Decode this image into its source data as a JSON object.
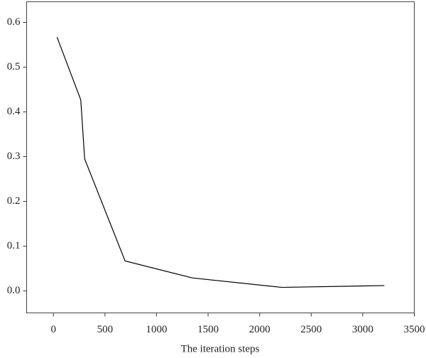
{
  "chart_data": {
    "type": "line",
    "x_label": "The iteration steps",
    "x": [
      35,
      265,
      303,
      695,
      1350,
      2215,
      3210
    ],
    "values": [
      0.567,
      0.427,
      0.295,
      0.067,
      0.029,
      0.008,
      0.012
    ],
    "color": "#000000",
    "xlim": [
      -260,
      3500
    ],
    "xticks": [
      0,
      500,
      1000,
      1500,
      2000,
      2500,
      3000,
      3500
    ],
    "ylim": [
      -0.049,
      0.646
    ],
    "yticks": [
      {
        "value": 0.0,
        "label": "0.0"
      },
      0.1,
      0.2,
      0.3,
      0.4,
      0.5,
      0.6
    ],
    "grid": false
  }
}
